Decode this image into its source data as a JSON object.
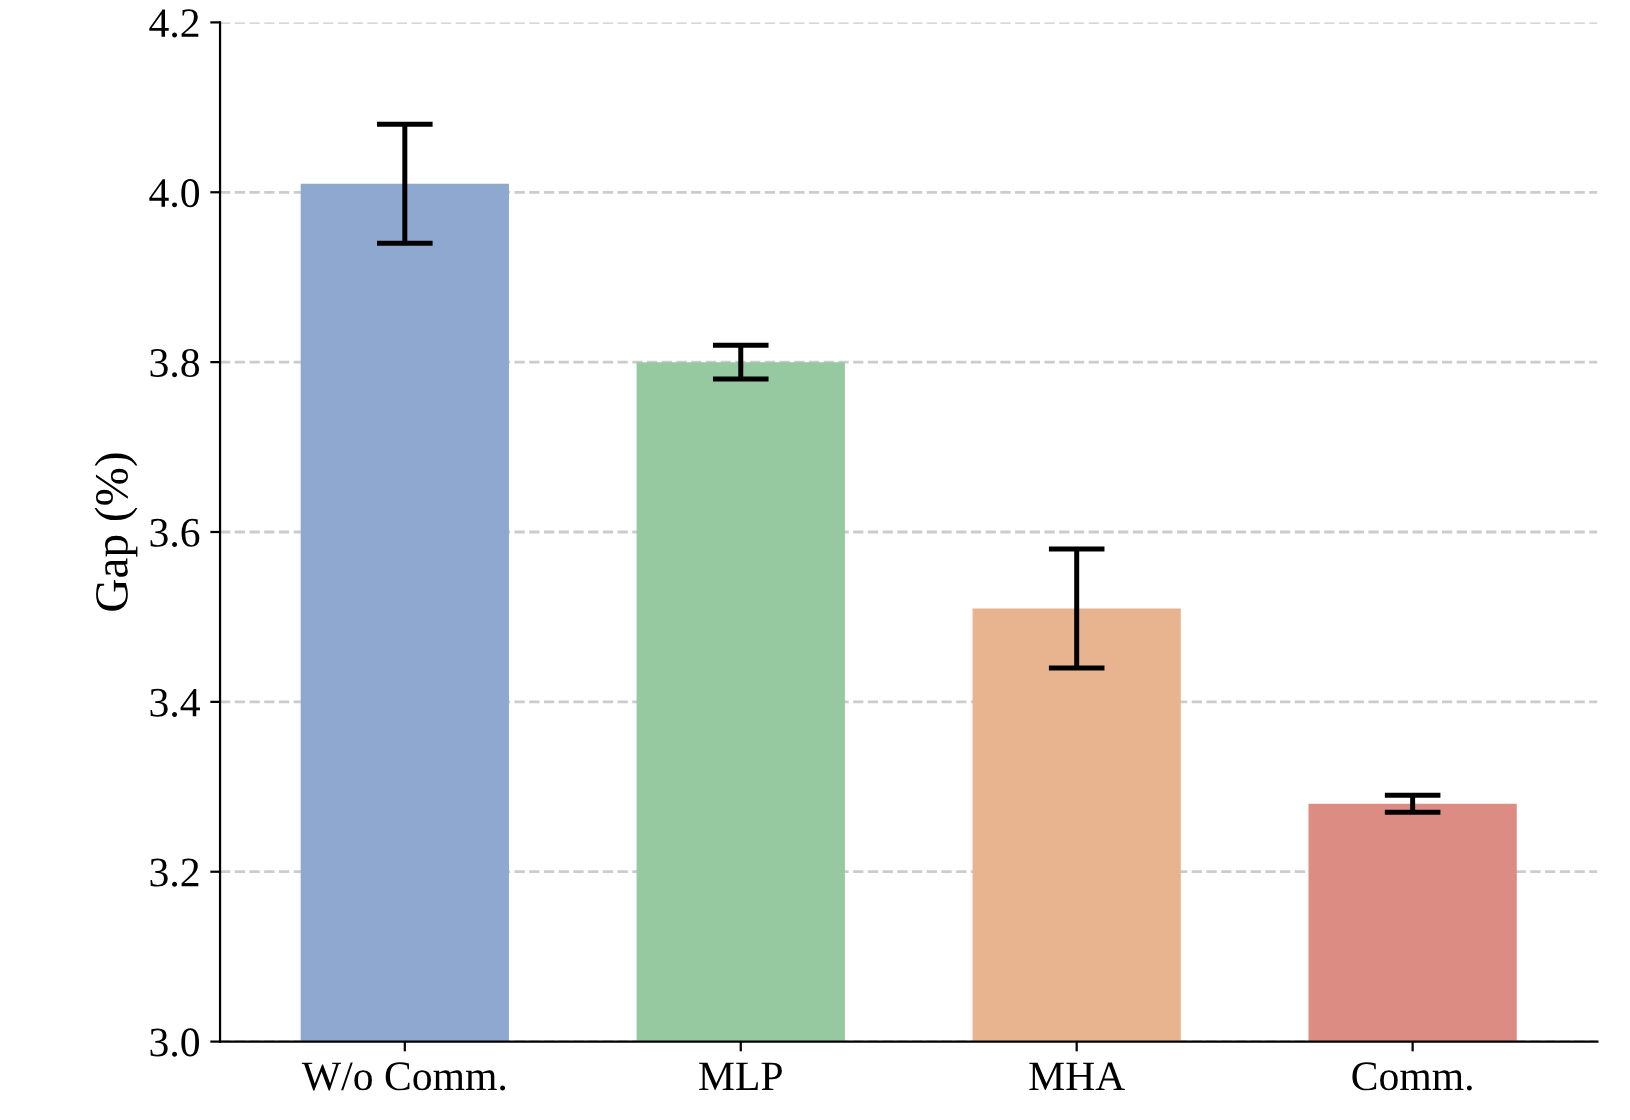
{
  "chart_data": {
    "type": "bar",
    "ylabel": "Gap (%)",
    "categories": [
      "W/o Comm.",
      "MLP",
      "MHA",
      "Comm."
    ],
    "values": [
      4.01,
      3.8,
      3.51,
      3.28
    ],
    "errors": [
      0.07,
      0.02,
      0.07,
      0.01
    ],
    "colors": [
      "#8fa8d0",
      "#96c9a0",
      "#e8b490",
      "#dc8c82"
    ],
    "ylim": [
      3.0,
      4.2
    ],
    "yticks": [
      {
        "value": 3.0,
        "label": "3.0"
      },
      {
        "value": 3.2,
        "label": "3.2"
      },
      {
        "value": 3.4,
        "label": "3.4"
      },
      {
        "value": 3.6,
        "label": "3.6"
      },
      {
        "value": 3.8,
        "label": "3.8"
      },
      {
        "value": 4.0,
        "label": "4.0"
      },
      {
        "value": 4.2,
        "label": "4.2"
      }
    ],
    "grid": "y"
  }
}
